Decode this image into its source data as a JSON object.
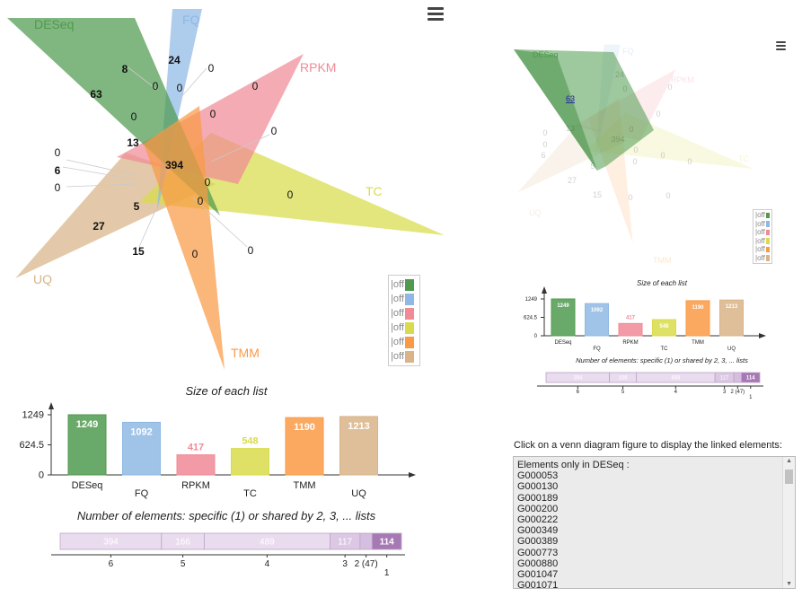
{
  "colors": {
    "DESeq": "#4f9a4f",
    "FQ": "#8fb8e4",
    "RPKM": "#f08a96",
    "TC": "#d8dc4a",
    "TMM": "#fa9a45",
    "UQ": "#d8b488"
  },
  "venn": {
    "set_labels": [
      "DESeq",
      "FQ",
      "RPKM",
      "TC",
      "TMM",
      "UQ"
    ],
    "region_counts": [
      "8",
      "24",
      "0",
      "0",
      "63",
      "0",
      "0",
      "0",
      "0",
      "13",
      "0",
      "394",
      "0",
      "6",
      "0",
      "0",
      "0",
      "5",
      "0",
      "27",
      "15",
      "0",
      "0"
    ],
    "legend_label": "off"
  },
  "right_venn": {
    "set_labels": [
      "DESeq",
      "FQ",
      "RPKM",
      "TC",
      "TMM",
      "UQ"
    ],
    "highlighted_count": "63",
    "faded_counts": [
      "24",
      "0",
      "0",
      "0",
      "13",
      "0",
      "394",
      "0",
      "0",
      "0",
      "6",
      "0",
      "5",
      "0",
      "27",
      "15",
      "0",
      "0",
      "0"
    ]
  },
  "chart_data": [
    {
      "type": "bar",
      "title": "Size of each list",
      "categories": [
        "DESeq",
        "FQ",
        "RPKM",
        "TC",
        "TMM",
        "UQ"
      ],
      "values": [
        1249,
        1092,
        417,
        548,
        1190,
        1213
      ],
      "yticks": [
        "1249",
        "624.5",
        "0"
      ],
      "ylim": [
        0,
        1249
      ],
      "xlabel": "",
      "ylabel": ""
    },
    {
      "type": "bar",
      "title": "Number of elements: specific (1) or shared by 2, 3, ... lists",
      "categories": [
        "6",
        "5",
        "4",
        "3",
        "2",
        "1"
      ],
      "values": [
        394,
        166,
        489,
        117,
        47,
        114
      ],
      "value_labels": [
        "394",
        "166",
        "489",
        "117",
        "",
        "114"
      ],
      "tick_labels": [
        "6",
        "5",
        "4",
        "3",
        "2 (47)",
        "1"
      ]
    }
  ],
  "linked": {
    "caption": "Click on a venn diagram figure to display the linked elements:",
    "header": "Elements only in DESeq :",
    "items": [
      "G000053",
      "G000130",
      "G000189",
      "G000200",
      "G000222",
      "G000349",
      "G000389",
      "G000773",
      "G000880",
      "G001047",
      "G001071"
    ]
  },
  "icons": {
    "menu": "hamburger-menu-icon",
    "scroll_up": "scroll-up-icon",
    "scroll_down": "scroll-down-icon"
  }
}
